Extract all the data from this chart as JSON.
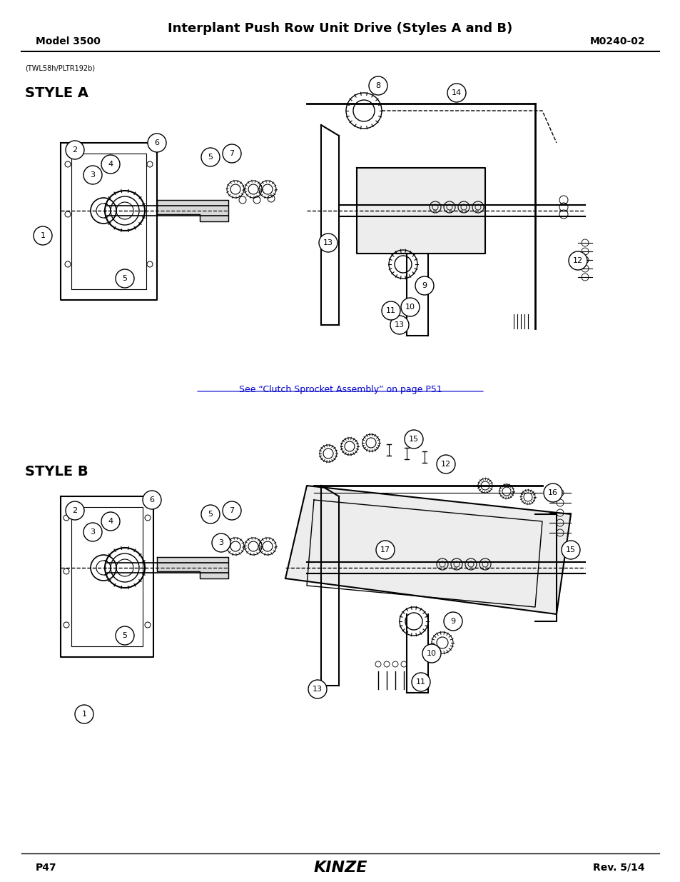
{
  "title": "Interplant Push Row Unit Drive (Styles A and B)",
  "model": "Model 3500",
  "part_number": "M0240-02",
  "page": "P47",
  "rev": "Rev. 5/14",
  "image_code": "(TWL58h/PLTR192b)",
  "style_a_label": "STYLE A",
  "style_b_label": "STYLE B",
  "link_text": "See “Clutch Sprocket Assembly” on page P51",
  "background_color": "#ffffff",
  "text_color": "#000000",
  "link_color": "#0000cc",
  "title_fontsize": 13,
  "header_fontsize": 10,
  "style_label_fontsize": 14,
  "footer_fontsize": 10,
  "image_code_fontsize": 7
}
